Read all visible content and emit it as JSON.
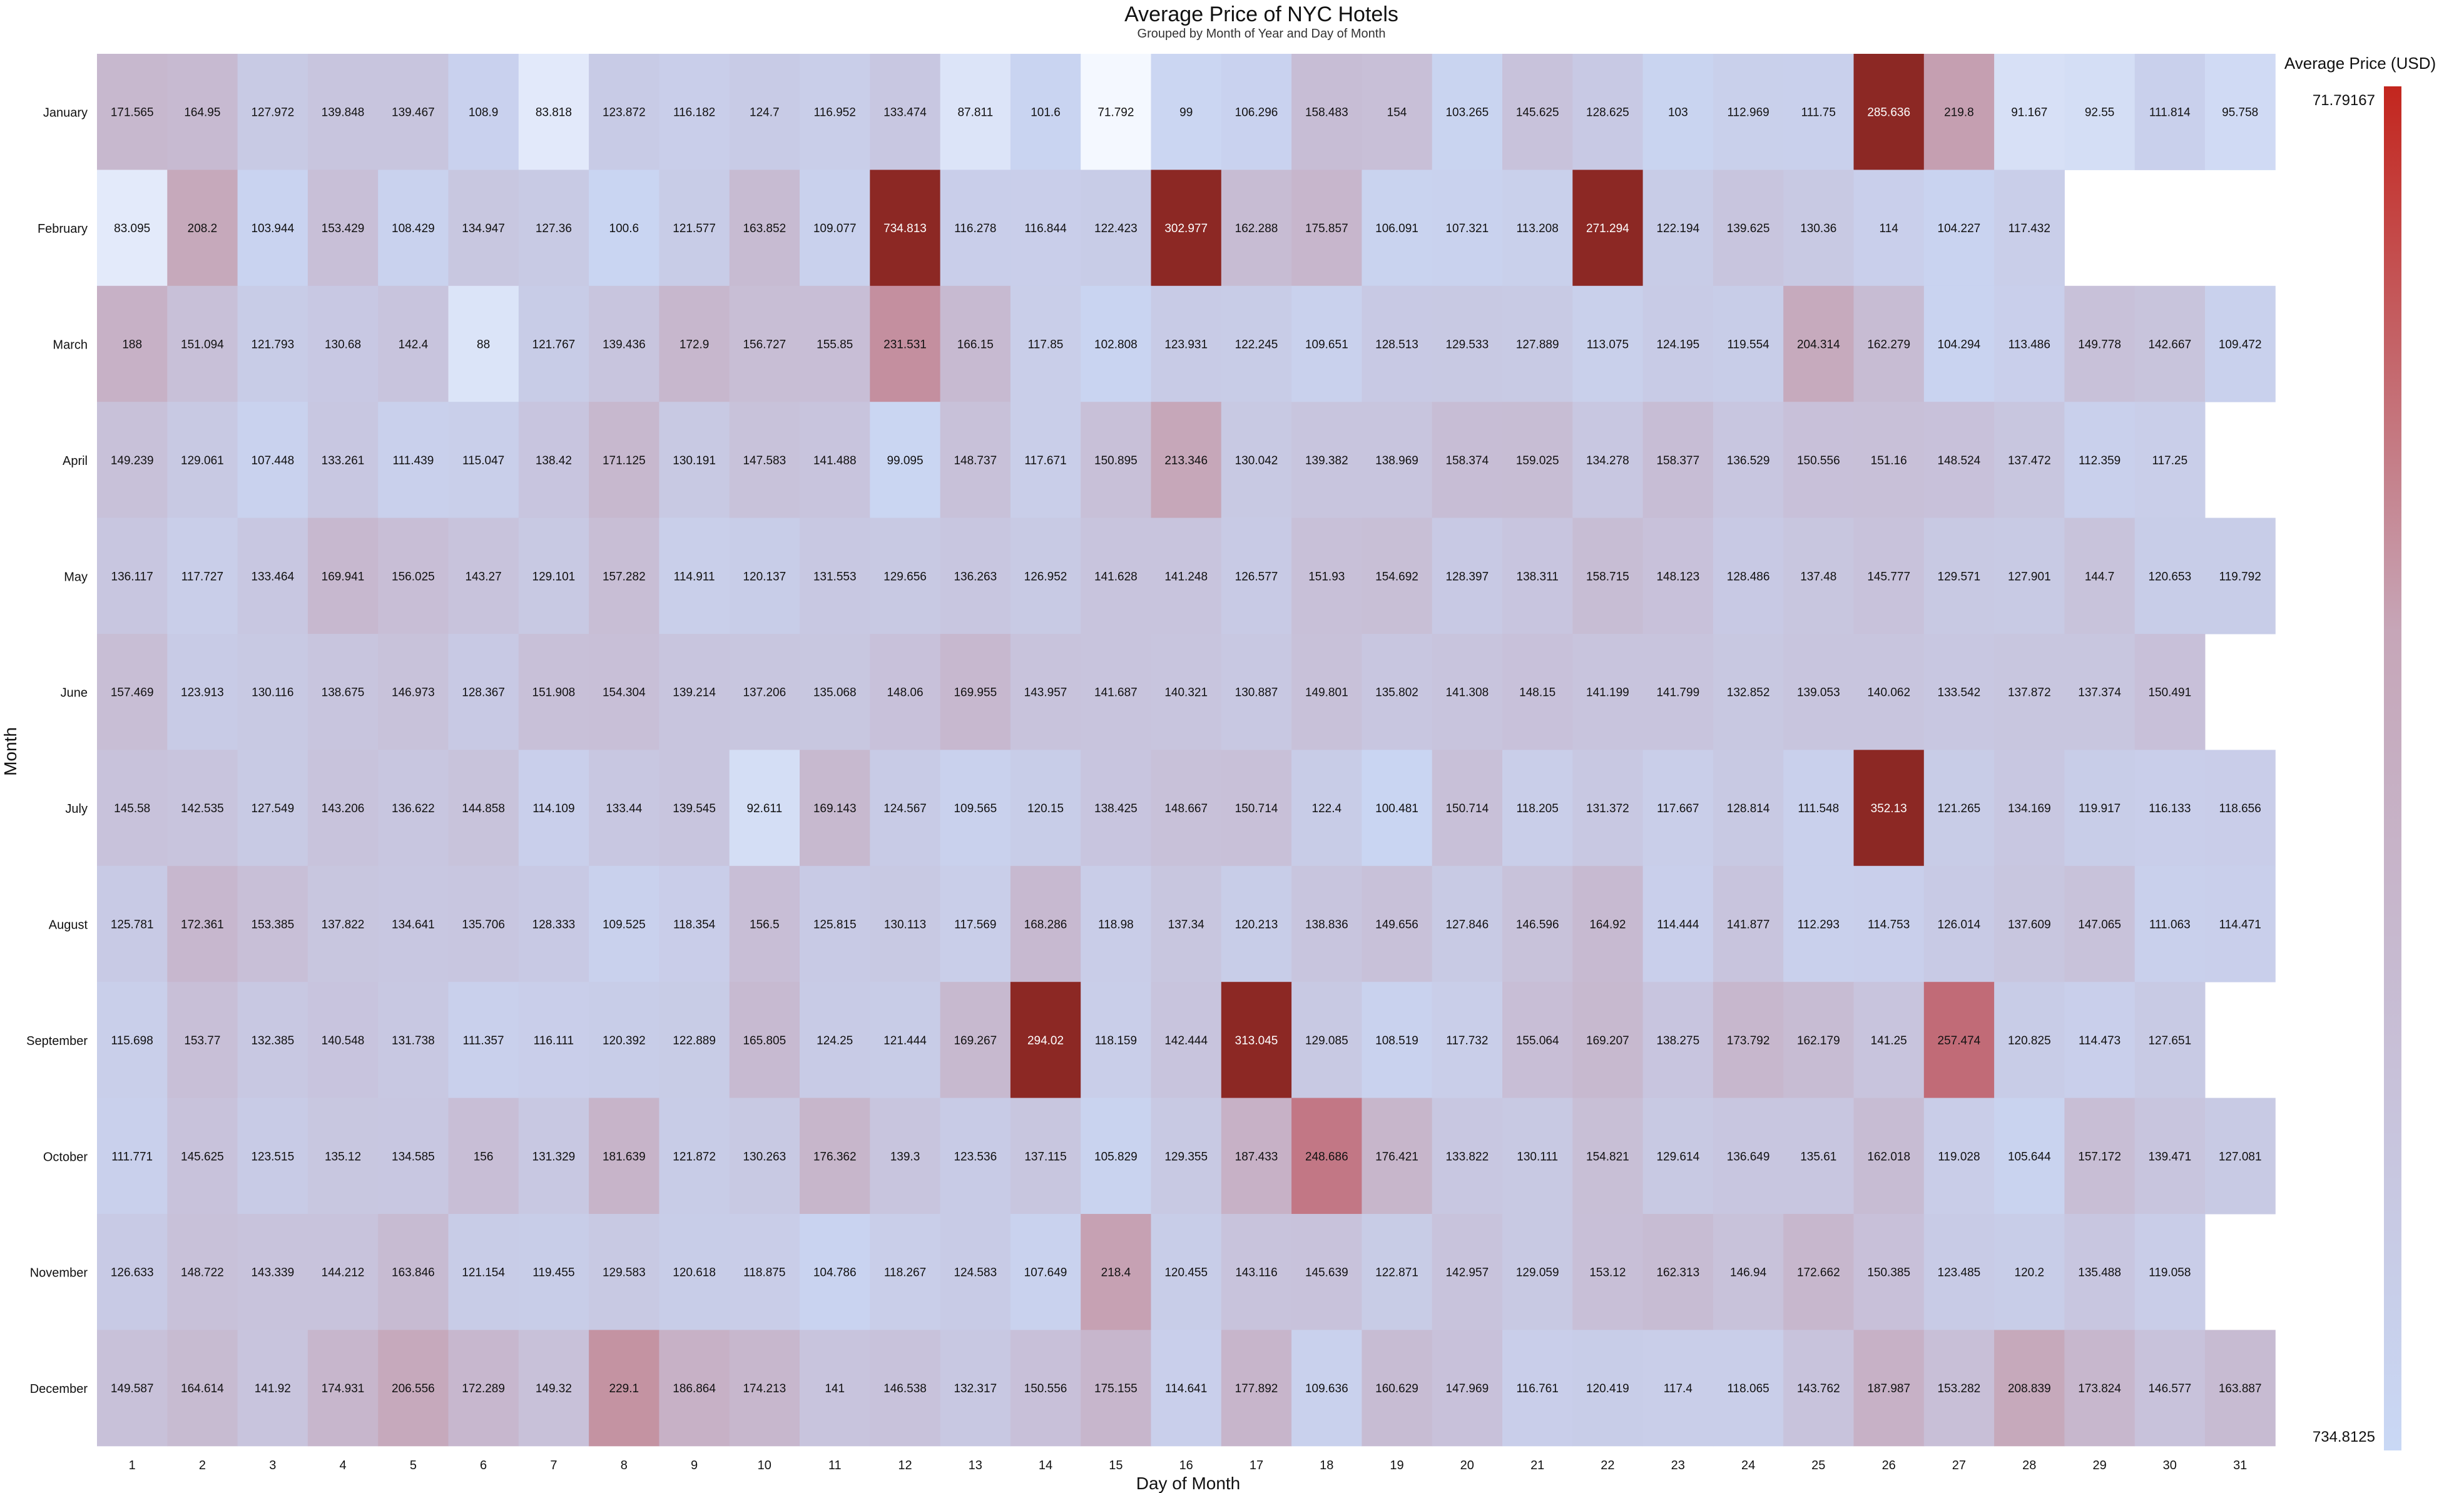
{
  "chart_data": {
    "type": "heatmap",
    "title": "Average Price of NYC Hotels",
    "subtitle": "Grouped by Month of Year and Day of Month",
    "xlabel": "Day of Month",
    "ylabel": "Month",
    "x": [
      "1",
      "2",
      "3",
      "4",
      "5",
      "6",
      "7",
      "8",
      "9",
      "10",
      "11",
      "12",
      "13",
      "14",
      "15",
      "16",
      "17",
      "18",
      "19",
      "20",
      "21",
      "22",
      "23",
      "24",
      "25",
      "26",
      "27",
      "28",
      "29",
      "30",
      "31"
    ],
    "y": [
      "January",
      "February",
      "March",
      "April",
      "May",
      "June",
      "July",
      "August",
      "September",
      "October",
      "November",
      "December"
    ],
    "values": [
      [
        171.565,
        164.95,
        127.972,
        139.848,
        139.467,
        108.9,
        83.818,
        123.872,
        116.182,
        124.7,
        116.952,
        133.474,
        87.811,
        101.6,
        71.792,
        99,
        106.296,
        158.483,
        154,
        103.265,
        145.625,
        128.625,
        103,
        112.969,
        111.75,
        285.636,
        219.8,
        91.167,
        92.55,
        111.814,
        95.758
      ],
      [
        83.095,
        208.2,
        103.944,
        153.429,
        108.429,
        134.947,
        127.36,
        100.6,
        121.577,
        163.852,
        109.077,
        734.813,
        116.278,
        116.844,
        122.423,
        302.977,
        162.288,
        175.857,
        106.091,
        107.321,
        113.208,
        271.294,
        122.194,
        139.625,
        130.36,
        114,
        104.227,
        117.432,
        null,
        null,
        null
      ],
      [
        188,
        151.094,
        121.793,
        130.68,
        142.4,
        88,
        121.767,
        139.436,
        172.9,
        156.727,
        155.85,
        231.531,
        166.15,
        117.85,
        102.808,
        123.931,
        122.245,
        109.651,
        128.513,
        129.533,
        127.889,
        113.075,
        124.195,
        119.554,
        204.314,
        162.279,
        104.294,
        113.486,
        149.778,
        142.667,
        109.472
      ],
      [
        149.239,
        129.061,
        107.448,
        133.261,
        111.439,
        115.047,
        138.42,
        171.125,
        130.191,
        147.583,
        141.488,
        99.095,
        148.737,
        117.671,
        150.895,
        213.346,
        130.042,
        139.382,
        138.969,
        158.374,
        159.025,
        134.278,
        158.377,
        136.529,
        150.556,
        151.16,
        148.524,
        137.472,
        112.359,
        117.25,
        null
      ],
      [
        136.117,
        117.727,
        133.464,
        169.941,
        156.025,
        143.27,
        129.101,
        157.282,
        114.911,
        120.137,
        131.553,
        129.656,
        136.263,
        126.952,
        141.628,
        141.248,
        126.577,
        151.93,
        154.692,
        128.397,
        138.311,
        158.715,
        148.123,
        128.486,
        137.48,
        145.777,
        129.571,
        127.901,
        144.7,
        120.653,
        119.792
      ],
      [
        157.469,
        123.913,
        130.116,
        138.675,
        146.973,
        128.367,
        151.908,
        154.304,
        139.214,
        137.206,
        135.068,
        148.06,
        169.955,
        143.957,
        141.687,
        140.321,
        130.887,
        149.801,
        135.802,
        141.308,
        148.15,
        141.199,
        141.799,
        132.852,
        139.053,
        140.062,
        133.542,
        137.872,
        137.374,
        150.491,
        null
      ],
      [
        145.58,
        142.535,
        127.549,
        143.206,
        136.622,
        144.858,
        114.109,
        133.44,
        139.545,
        92.611,
        169.143,
        124.567,
        109.565,
        120.15,
        138.425,
        148.667,
        150.714,
        122.4,
        100.481,
        150.714,
        118.205,
        131.372,
        117.667,
        128.814,
        111.548,
        352.13,
        121.265,
        134.169,
        119.917,
        116.133,
        118.656
      ],
      [
        125.781,
        172.361,
        153.385,
        137.822,
        134.641,
        135.706,
        128.333,
        109.525,
        118.354,
        156.5,
        125.815,
        130.113,
        117.569,
        168.286,
        118.98,
        137.34,
        120.213,
        138.836,
        149.656,
        127.846,
        146.596,
        164.92,
        114.444,
        141.877,
        112.293,
        114.753,
        126.014,
        137.609,
        147.065,
        111.063,
        114.471
      ],
      [
        115.698,
        153.77,
        132.385,
        140.548,
        131.738,
        111.357,
        116.111,
        120.392,
        122.889,
        165.805,
        124.25,
        121.444,
        169.267,
        294.02,
        118.159,
        142.444,
        313.045,
        129.085,
        108.519,
        117.732,
        155.064,
        169.207,
        138.275,
        173.792,
        162.179,
        141.25,
        257.474,
        120.825,
        114.473,
        127.651,
        null
      ],
      [
        111.771,
        145.625,
        123.515,
        135.12,
        134.585,
        156,
        131.329,
        181.639,
        121.872,
        130.263,
        176.362,
        139.3,
        123.536,
        137.115,
        105.829,
        129.355,
        187.433,
        248.686,
        176.421,
        133.822,
        130.111,
        154.821,
        129.614,
        136.649,
        135.61,
        162.018,
        119.028,
        105.644,
        157.172,
        139.471,
        127.081
      ],
      [
        126.633,
        148.722,
        143.339,
        144.212,
        163.846,
        121.154,
        119.455,
        129.583,
        120.618,
        118.875,
        104.786,
        118.267,
        124.583,
        107.649,
        218.4,
        120.455,
        143.116,
        145.639,
        122.871,
        142.957,
        129.059,
        153.12,
        162.313,
        146.94,
        172.662,
        150.385,
        123.485,
        120.2,
        135.488,
        119.058,
        null
      ],
      [
        149.587,
        164.614,
        141.92,
        174.931,
        206.556,
        172.289,
        149.32,
        229.1,
        186.864,
        174.213,
        141,
        146.538,
        132.317,
        150.556,
        175.155,
        114.641,
        177.892,
        109.636,
        160.629,
        147.969,
        116.761,
        120.419,
        117.4,
        118.065,
        143.762,
        187.987,
        153.282,
        208.839,
        173.824,
        146.577,
        163.887
      ]
    ],
    "colorbar": {
      "title": "Average Price (USD)",
      "top_label": "71.79167",
      "bottom_label": "734.8125",
      "colors": [
        "#f4f8ff",
        "#c9d5f2",
        "#c6a6b8",
        "#c3261e"
      ]
    }
  }
}
